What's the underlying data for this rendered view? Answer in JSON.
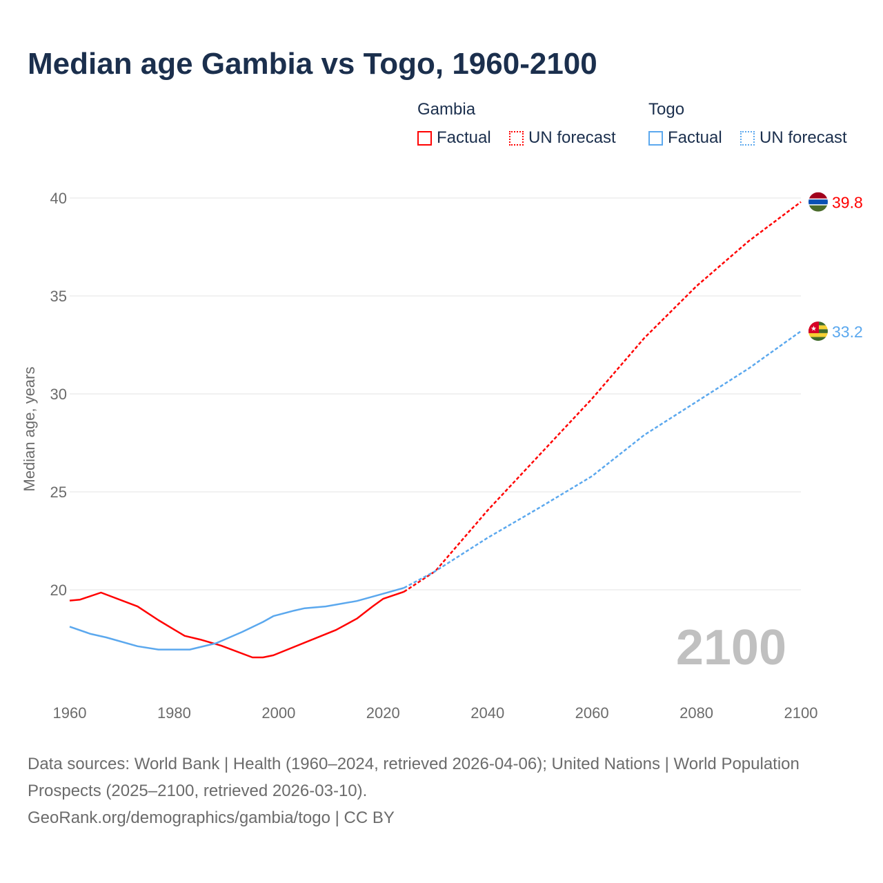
{
  "title": "Median age Gambia vs Togo, 1960-2100",
  "legend": {
    "groups": [
      {
        "name": "Gambia",
        "factual": "Factual",
        "forecast": "UN forecast",
        "color": "#ff0000"
      },
      {
        "name": "Togo",
        "factual": "Factual",
        "forecast": "UN forecast",
        "color": "#5ba8ee"
      }
    ]
  },
  "year_watermark": "2100",
  "footer": {
    "line1": "Data sources: World Bank | Health (1960–2024, retrieved 2026-04-06); United Nations | World Population Prospects (2025–2100, retrieved 2026-03-10).",
    "line2": "GeoRank.org/demographics/gambia/togo | CC BY"
  },
  "chart_data": {
    "type": "line",
    "title": "Median age Gambia vs Togo, 1960-2100",
    "xlabel": "",
    "ylabel": "Median age, years",
    "xlim": [
      1960,
      2100
    ],
    "ylim": [
      15.6,
      40
    ],
    "xticks": [
      "1960",
      "1980",
      "2000",
      "2020",
      "2040",
      "2060",
      "2080",
      "2100"
    ],
    "yticks": [
      "20",
      "25",
      "30",
      "35",
      "40"
    ],
    "grid": true,
    "series": [
      {
        "name": "Gambia",
        "kind": "Factual",
        "color": "#ff0000",
        "x": [
          1960,
          1962,
          1966,
          1973,
          1977,
          1982,
          1985,
          1989,
          1995,
          1997,
          1999,
          2011,
          2015,
          2018,
          2020,
          2024
        ],
        "y": [
          19.45,
          19.5,
          19.86,
          19.15,
          18.45,
          17.65,
          17.46,
          17.15,
          16.55,
          16.55,
          16.66,
          17.95,
          18.53,
          19.15,
          19.54,
          19.9
        ]
      },
      {
        "name": "Gambia",
        "kind": "UN forecast",
        "color": "#ff0000",
        "x": [
          2024,
          2030,
          2040,
          2050,
          2060,
          2070,
          2080,
          2090,
          2100
        ],
        "y": [
          19.9,
          20.95,
          24.05,
          26.9,
          29.75,
          32.85,
          35.5,
          37.8,
          39.8
        ]
      },
      {
        "name": "Togo",
        "kind": "Factual",
        "color": "#5ba8ee",
        "x": [
          1960,
          1964,
          1967,
          1973,
          1977,
          1983,
          1988,
          1993,
          1997,
          1999,
          2003,
          2005,
          2009,
          2015,
          2020,
          2024
        ],
        "y": [
          18.12,
          17.75,
          17.57,
          17.12,
          16.95,
          16.95,
          17.27,
          17.85,
          18.36,
          18.66,
          18.94,
          19.06,
          19.15,
          19.43,
          19.8,
          20.1
        ]
      },
      {
        "name": "Togo",
        "kind": "UN forecast",
        "color": "#5ba8ee",
        "x": [
          2024,
          2030,
          2040,
          2050,
          2060,
          2070,
          2080,
          2090,
          2100
        ],
        "y": [
          20.1,
          20.95,
          22.65,
          24.2,
          25.8,
          27.9,
          29.6,
          31.3,
          33.2
        ]
      }
    ],
    "end_labels": [
      {
        "country": "Gambia",
        "value": "39.8",
        "color": "#ff0000"
      },
      {
        "country": "Togo",
        "value": "33.2",
        "color": "#5ba8ee"
      }
    ]
  }
}
